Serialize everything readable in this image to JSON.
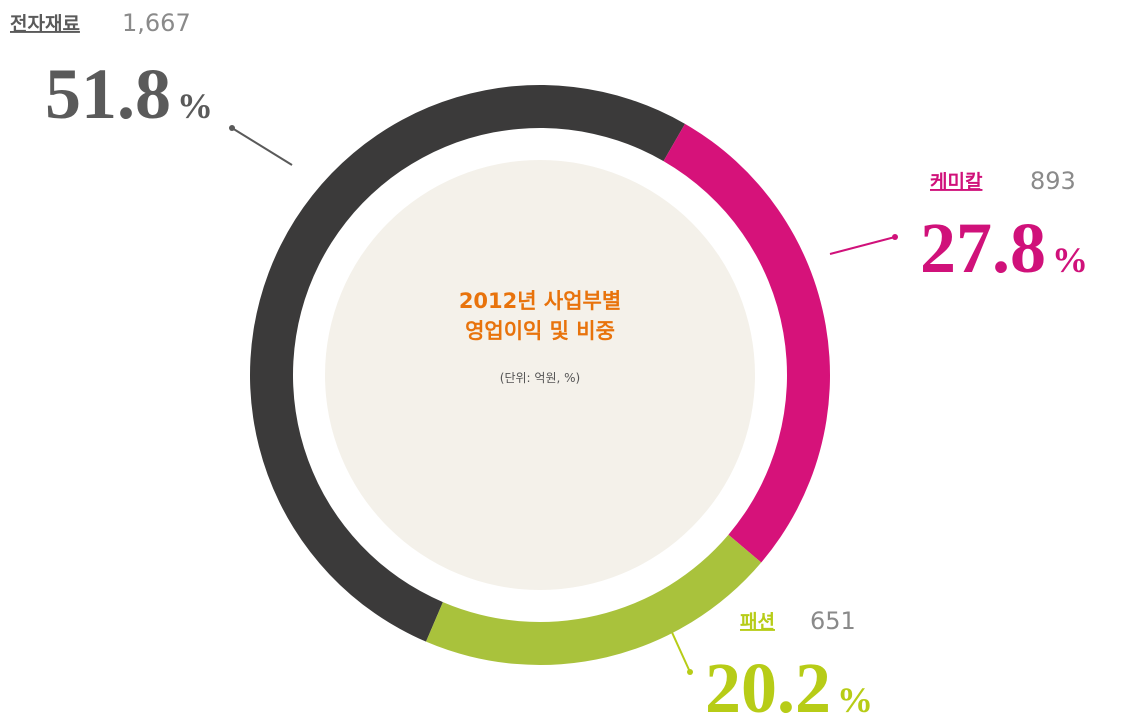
{
  "chart_data": {
    "type": "donut",
    "title": [
      "2012년 사업부별",
      "영업이익 및 비중"
    ],
    "subtitle": "(단위: 억원, %)",
    "categories": [
      "전자재료",
      "케미칼",
      "패션"
    ],
    "values": [
      1667,
      893,
      651
    ],
    "value_labels": [
      "1,667",
      "893",
      "651"
    ],
    "shares": [
      51.8,
      27.8,
      20.2
    ],
    "share_unit": "%",
    "colors": [
      "#3b3a3a",
      "#d6127a",
      "#a9c23c"
    ],
    "label_colors": [
      "#5a5a5a",
      "#d0117a",
      "#b7cc17"
    ]
  }
}
